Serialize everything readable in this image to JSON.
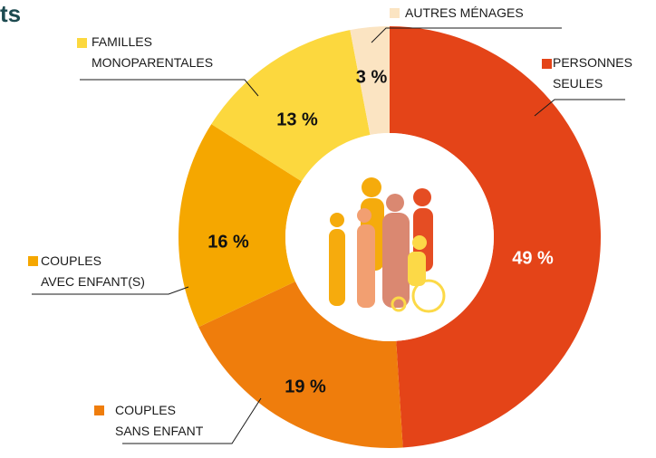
{
  "chart_data": {
    "type": "donut",
    "title": "ts",
    "categories": [
      "PERSONNES\nSEULES",
      "COUPLES\nSANS ENFANT",
      "COUPLES\nAVEC ENFANT(S)",
      "FAMILLES\nMONOPARENTALES",
      "AUTRES MÉNAGES"
    ],
    "values": [
      49,
      19,
      16,
      13,
      3
    ],
    "value_labels": [
      "49 %",
      "19 %",
      "16 %",
      "13 %",
      "3 %"
    ],
    "colors": [
      "#e44418",
      "#ef7d0c",
      "#f5a700",
      "#fcd83e",
      "#fbe4c2"
    ]
  }
}
